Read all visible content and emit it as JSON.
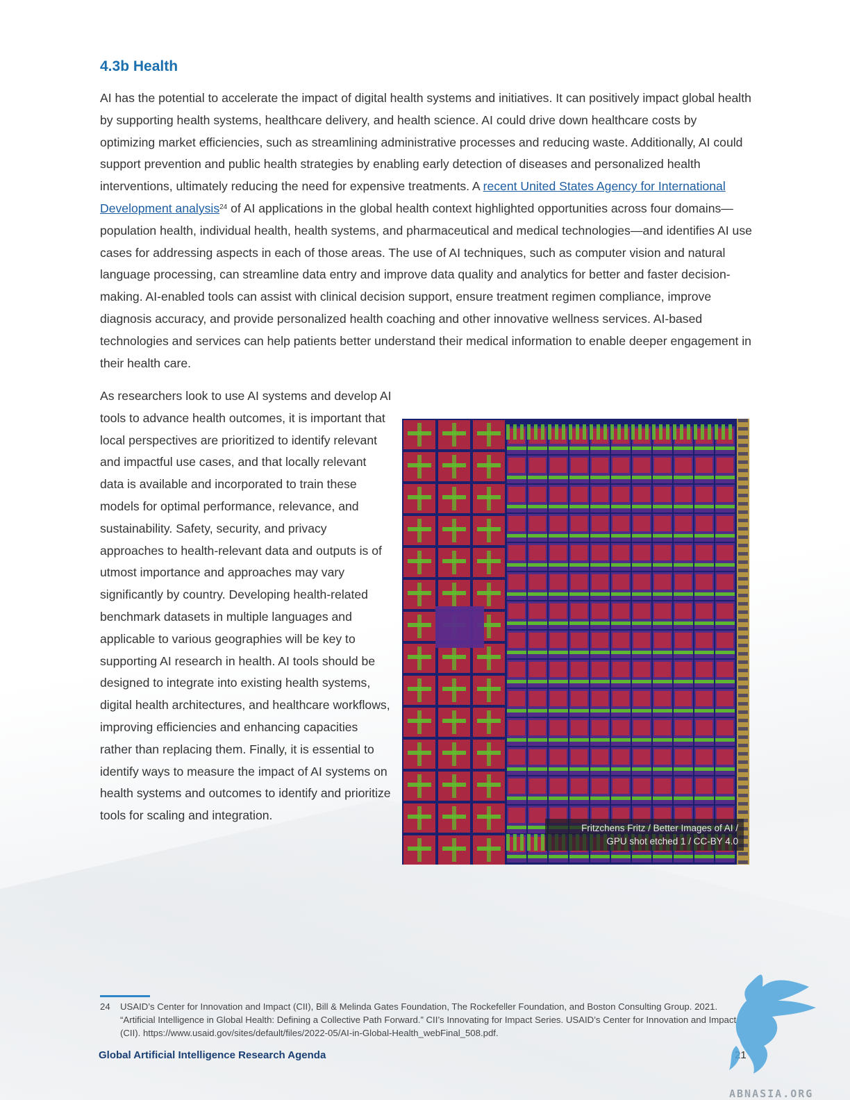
{
  "section": {
    "heading": "4.3b Health"
  },
  "paragraph1": {
    "text_before_link": "AI has the potential to accelerate the impact of digital health systems and initiatives. It can positively impact global health by supporting health systems, healthcare delivery, and health science. AI could drive down healthcare costs by optimizing market efficiencies, such as streamlining administrative processes and reducing waste. Additionally, AI could support prevention and public health strategies by enabling early detection of diseases and personalized health interventions, ultimately reducing the need for expensive treatments. A ",
    "link_text": "recent United States Agency for International Development analysis",
    "footnote_ref": "24",
    "text_after_link": " of AI applications in the global health context highlighted opportunities across four domains—population health, individual health, health systems, and pharmaceutical and medical technologies—and identifies AI use cases for addressing aspects in each of those areas. The use of AI techniques, such as computer vision and natural language processing, can streamline data entry and improve data quality and analytics for better and faster decision-making. AI-enabled tools can assist with clinical decision support, ensure treatment regimen compliance, improve diagnosis accuracy, and provide personalized health coaching and other innovative wellness services. AI-based technologies and services can help patients better understand their medical information to enable deeper engagement in their health care."
  },
  "paragraph2": {
    "text": "As researchers look to use AI systems and develop AI tools to advance health outcomes, it is important that local perspectives are prioritized to identify relevant and impactful use cases, and that locally relevant data is available and incorporated to train these models for optimal performance, relevance, and sustainability. Safety, security, and privacy approaches to health-relevant data and outputs is of utmost importance and approaches may vary significantly by country. Developing health-related benchmark datasets in multiple languages and applicable to various geographies will be key to supporting AI research in health. AI tools should be designed to integrate into existing health systems, digital health architectures, and healthcare workflows, improving efficiencies and enhancing capacities rather than replacing them. Finally, it is essential to identify ways to measure the impact of AI systems on health systems and outcomes to identify and prioritize tools for scaling and integration."
  },
  "figure": {
    "caption_line1": "Fritzchens Fritz / Better Images of AI /",
    "caption_line2": "GPU shot etched 1 / CC-BY 4.0",
    "colors": {
      "base": "#1a1f6e",
      "red": "#c42a3a",
      "green": "#5fbf2e",
      "purple": "#5a2c8c",
      "gold": "#d8b23a"
    }
  },
  "footnote": {
    "number": "24",
    "text": "USAID’s Center for Innovation and Impact (CII), Bill & Melinda Gates Foundation, The Rockefeller Foundation, and Boston Consulting Group. 2021. “Artificial Intelligence in Global Health: Defining a Collective Path Forward.” CII’s Innovating for Impact Series. USAID’s Center for Innovation and Impact (CII). https://www.usaid.gov/sites/default/files/2022-05/AI-in-Global-Health_webFinal_508.pdf."
  },
  "footer": {
    "title": "Global Artificial Intelligence Research Agenda",
    "page_number": "21"
  },
  "watermark": {
    "text": "ABNASIA.ORG",
    "icon": "eagle-icon"
  }
}
